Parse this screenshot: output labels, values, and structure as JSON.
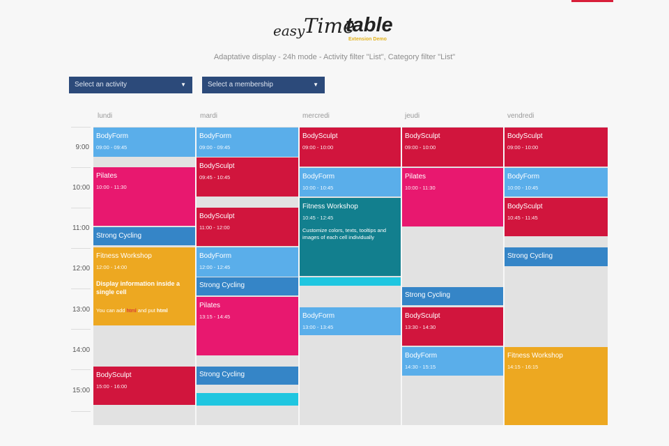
{
  "header": {
    "logo_easy": "easy",
    "logo_time": "Time",
    "logo_table": "table",
    "logo_sub": "Extension Demo",
    "subtitle": "Adaptative display - 24h mode - Activity filter \"List\", Category filter \"List\""
  },
  "filters": {
    "activity": {
      "label": "Select an activity"
    },
    "membership": {
      "label": "Select a membership"
    }
  },
  "days": [
    "lundi",
    "mardi",
    "mercredi",
    "jeudi",
    "vendredi"
  ],
  "times": [
    "9:00",
    "10:00",
    "11:00",
    "12:00",
    "13:00",
    "14:00",
    "15:00"
  ],
  "colors": {
    "red": "#d1153d",
    "blue": "#5aaeea",
    "pink": "#e8186f",
    "navy": "#3585c7",
    "gold": "#eda821",
    "teal": "#127f8e",
    "cyan": "#1fc6e0"
  },
  "events": {
    "mon": [
      {
        "title": "BodyForm",
        "hours": "09:00 - 09:45"
      },
      {
        "title": "Pilates",
        "hours": "10:00 - 11:30"
      },
      {
        "title": "Strong Cycling"
      },
      {
        "title": "Fitness Workshop",
        "hours": "12:00 - 14:00",
        "bold_text": "Display information inside a single cell",
        "prefix": "You can add ",
        "html_word": "html",
        "middle": " and put ",
        "end_word": "html"
      },
      {
        "title": "BodySculpt",
        "hours": "15:00 - 16:00"
      }
    ],
    "tue": [
      {
        "title": "BodyForm",
        "hours": "09:00 - 09:45"
      },
      {
        "title": "BodySculpt",
        "hours": "09:45 - 10:45"
      },
      {
        "title": "BodySculpt",
        "hours": "11:00 - 12:00"
      },
      {
        "title": "BodyForm",
        "hours": "12:00 - 12:45"
      },
      {
        "title": "Strong Cycling"
      },
      {
        "title": "Pilates",
        "hours": "13:15 - 14:45"
      },
      {
        "title": "Strong Cycling"
      }
    ],
    "wed": [
      {
        "title": "BodySculpt",
        "hours": "09:00 - 10:00"
      },
      {
        "title": "BodyForm",
        "hours": "10:00 - 10:45"
      },
      {
        "title": "Fitness Workshop",
        "hours": "10:45 - 12:45",
        "desc": "Customize colors, texts, tooltips and images of each cell individually"
      },
      {
        "title": "BodyForm",
        "hours": "13:00 - 13:45"
      }
    ],
    "thu": [
      {
        "title": "BodySculpt",
        "hours": "09:00 - 10:00"
      },
      {
        "title": "Pilates",
        "hours": "10:00 - 11:30"
      },
      {
        "title": "Strong Cycling"
      },
      {
        "title": "BodySculpt",
        "hours": "13:30 - 14:30"
      },
      {
        "title": "BodyForm",
        "hours": "14:30 - 15:15"
      }
    ],
    "fri": [
      {
        "title": "BodySculpt",
        "hours": "09:00 - 10:00"
      },
      {
        "title": "BodyForm",
        "hours": "10:00 - 10:45"
      },
      {
        "title": "BodySculpt",
        "hours": "10:45 - 11:45"
      },
      {
        "title": "Strong Cycling"
      },
      {
        "title": "Fitness Workshop",
        "hours": "14:15 - 16:15"
      }
    ]
  }
}
